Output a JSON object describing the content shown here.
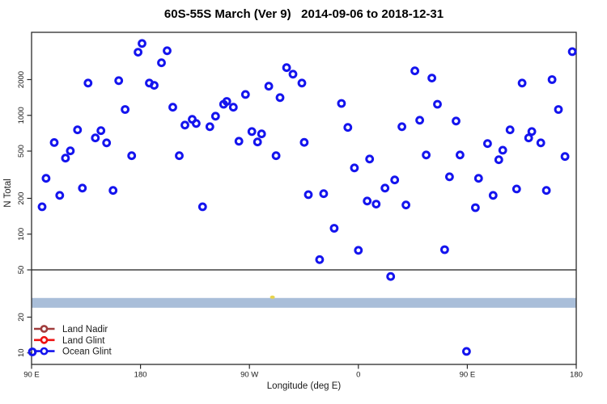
{
  "chart_data": {
    "type": "scatter",
    "title": "60S-55S March (Ver 9)   2014-09-06 to 2018-12-31",
    "xlabel": "Longitude (deg E)",
    "ylabel": "N Total",
    "xlim": [
      90,
      540
    ],
    "ylim": [
      8,
      5000
    ],
    "y_log": true,
    "grid": false,
    "x_ticks": [
      {
        "value": 90,
        "label": "90 E"
      },
      {
        "value": 180,
        "label": "180"
      },
      {
        "value": 270,
        "label": "90 W"
      },
      {
        "value": 360,
        "label": "0"
      },
      {
        "value": 450,
        "label": "90 E"
      },
      {
        "value": 540,
        "label": "180"
      }
    ],
    "y_ticks": [
      {
        "value": 10,
        "label": "10"
      },
      {
        "value": 20,
        "label": "20"
      },
      {
        "value": 50,
        "label": "50"
      },
      {
        "value": 100,
        "label": "100"
      },
      {
        "value": 200,
        "label": "200"
      },
      {
        "value": 500,
        "label": "500"
      },
      {
        "value": 1000,
        "label": "1000"
      },
      {
        "value": 2000,
        "label": "2000"
      }
    ],
    "reference_line_n": 50,
    "band": {
      "n_low": 24,
      "n_high": 29,
      "color": "#A9BED9"
    },
    "stray_marker": {
      "lon": 289,
      "n": 29,
      "color": "#E8D44D"
    },
    "legend": {
      "position": "bottom-left",
      "items": [
        {
          "label": "Land Nadir",
          "color": "#A03C3C"
        },
        {
          "label": "Land Glint",
          "color": "#EE1111"
        },
        {
          "label": "Ocean Glint",
          "color": "#1414EE"
        }
      ]
    },
    "series": [
      {
        "name": "Ocean Glint",
        "color": "#1414EE",
        "marker": "open-circle",
        "points": [
          [
            181.3,
            4030
          ],
          [
            178,
            3400
          ],
          [
            202,
            3500
          ],
          [
            197.3,
            2770
          ],
          [
            136.7,
            1870
          ],
          [
            162,
            1960
          ],
          [
            187.3,
            1870
          ],
          [
            191.3,
            1790
          ],
          [
            167.3,
            1120
          ],
          [
            128,
            755
          ],
          [
            147.3,
            743
          ],
          [
            142.7,
            645
          ],
          [
            152,
            587
          ],
          [
            108.7,
            590
          ],
          [
            300.7,
            2520
          ],
          [
            306,
            2220
          ],
          [
            313.3,
            1870
          ],
          [
            286,
            1760
          ],
          [
            266.7,
            1500
          ],
          [
            295.3,
            1410
          ],
          [
            251.3,
            1310
          ],
          [
            248.7,
            1240
          ],
          [
            256.7,
            1170
          ],
          [
            206.7,
            1170
          ],
          [
            242,
            984
          ],
          [
            222.7,
            925
          ],
          [
            226,
            855
          ],
          [
            216.7,
            828
          ],
          [
            237.3,
            803
          ],
          [
            272,
            731
          ],
          [
            280,
            698
          ],
          [
            261.3,
            605
          ],
          [
            276.7,
            597
          ],
          [
            406.7,
            2370
          ],
          [
            420.7,
            2060
          ],
          [
            346,
            1260
          ],
          [
            425.3,
            1240
          ],
          [
            410.7,
            910
          ],
          [
            396,
            803
          ],
          [
            351.3,
            791
          ],
          [
            315.3,
            592
          ],
          [
            536.7,
            3440
          ],
          [
            520,
            2000
          ],
          [
            495.3,
            1870
          ],
          [
            525.3,
            1120
          ],
          [
            440.7,
            896
          ],
          [
            485.3,
            755
          ],
          [
            503.3,
            731
          ],
          [
            500.7,
            645
          ],
          [
            510.7,
            587
          ],
          [
            466.7,
            578
          ],
          [
            122,
            502
          ],
          [
            118,
            436
          ],
          [
            172.7,
            457
          ],
          [
            102,
            295
          ],
          [
            132,
            244
          ],
          [
            157.3,
            233
          ],
          [
            113.3,
            212
          ],
          [
            98.7,
            170
          ],
          [
            212,
            457
          ],
          [
            292,
            457
          ],
          [
            231.3,
            170
          ],
          [
            416,
            464
          ],
          [
            369.3,
            429
          ],
          [
            356.7,
            361
          ],
          [
            390,
            286
          ],
          [
            382,
            244
          ],
          [
            318.7,
            215
          ],
          [
            331.3,
            219
          ],
          [
            367.3,
            190
          ],
          [
            374.7,
            179
          ],
          [
            399.3,
            176
          ],
          [
            340,
            112
          ],
          [
            360,
            73
          ],
          [
            328,
            61
          ],
          [
            444,
            464
          ],
          [
            479.3,
            509
          ],
          [
            476,
            423
          ],
          [
            530.7,
            450
          ],
          [
            435.3,
            304
          ],
          [
            459.3,
            295
          ],
          [
            490.7,
            240
          ],
          [
            515.3,
            233
          ],
          [
            471.3,
            212
          ],
          [
            456.7,
            167
          ],
          [
            431.3,
            74
          ],
          [
            386.7,
            44
          ],
          [
            449.3,
            10.3
          ],
          [
            90.7,
            10.2
          ]
        ]
      }
    ]
  }
}
